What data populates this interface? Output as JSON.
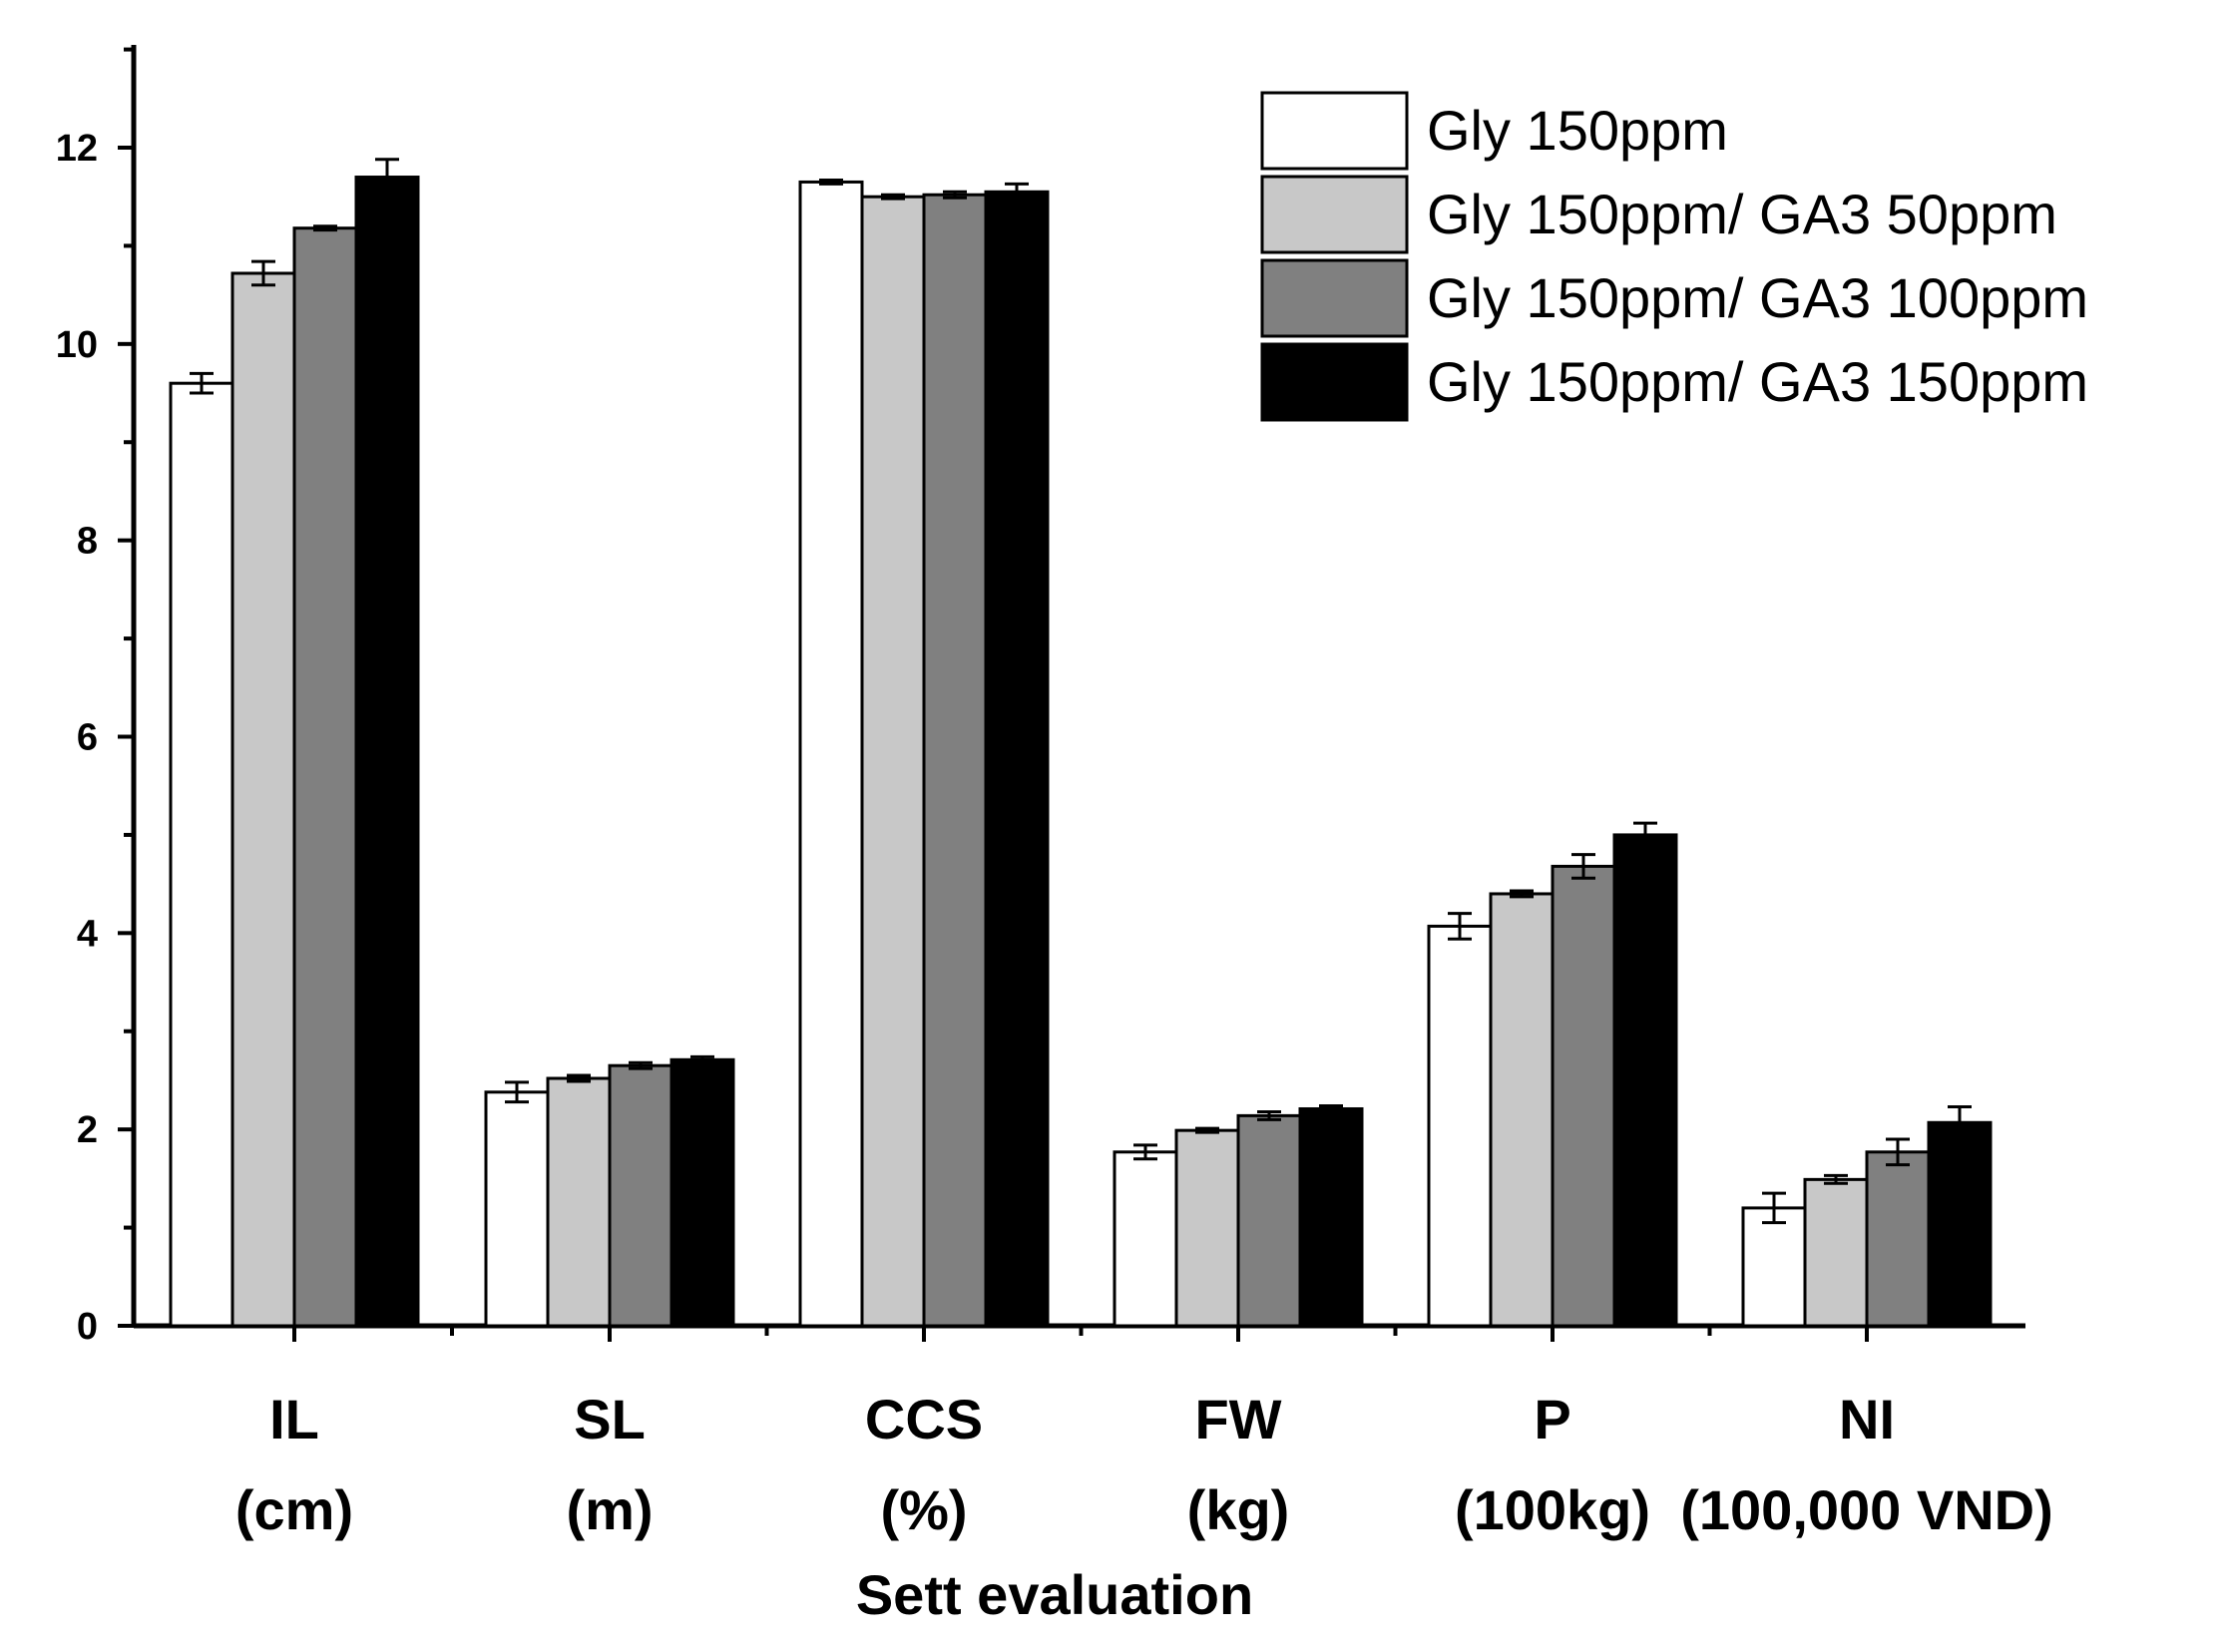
{
  "chart_data": {
    "type": "bar",
    "title": "",
    "xlabel": "Sett evaluation",
    "ylabel": "",
    "ylim": [
      0,
      13
    ],
    "yticks": [
      0,
      2,
      4,
      6,
      8,
      10,
      12
    ],
    "grid": false,
    "legend_position": "top-right",
    "categories": [
      {
        "line1": "IL",
        "line2": "(cm)"
      },
      {
        "line1": "SL",
        "line2": "(m)"
      },
      {
        "line1": "CCS",
        "line2": "(%)"
      },
      {
        "line1": "FW",
        "line2": "(kg)"
      },
      {
        "line1": "P",
        "line2": "(100kg)"
      },
      {
        "line1": "NI",
        "line2": "(100,000 VND)"
      }
    ],
    "series": [
      {
        "name": "Gly 150ppm",
        "color": "#ffffff",
        "values": [
          9.6,
          2.38,
          11.65,
          1.77,
          4.07,
          1.2
        ],
        "errors": [
          0.1,
          0.1,
          0.02,
          0.07,
          0.13,
          0.15
        ]
      },
      {
        "name": "Gly 150ppm/ GA3 50ppm",
        "color": "#c8c8c8",
        "values": [
          10.72,
          2.52,
          11.5,
          1.99,
          4.4,
          1.49
        ],
        "errors": [
          0.12,
          0.03,
          0.02,
          0.02,
          0.03,
          0.04
        ]
      },
      {
        "name": "Gly 150ppm/ GA3 100ppm",
        "color": "#808080",
        "values": [
          11.18,
          2.65,
          11.52,
          2.14,
          4.68,
          1.77
        ],
        "errors": [
          0.02,
          0.03,
          0.03,
          0.04,
          0.12,
          0.13
        ]
      },
      {
        "name": "Gly 150ppm/ GA3 150ppm",
        "color": "#000000",
        "values": [
          11.7,
          2.71,
          11.55,
          2.21,
          5.0,
          2.07
        ],
        "errors": [
          0.18,
          0.03,
          0.08,
          0.03,
          0.12,
          0.16
        ]
      }
    ]
  }
}
